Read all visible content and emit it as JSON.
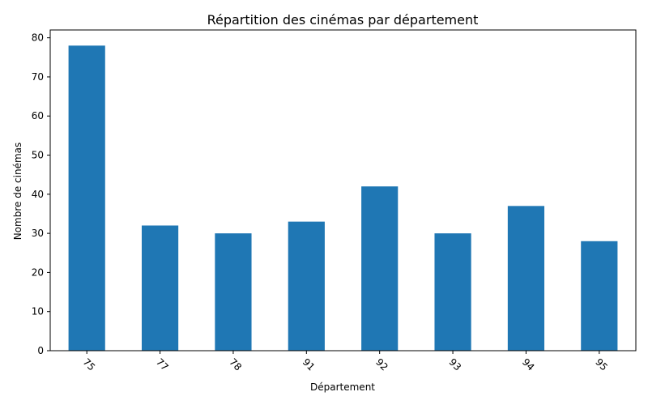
{
  "chart_data": {
    "type": "bar",
    "title": "Répartition des cinémas par département",
    "xlabel": "Département",
    "ylabel": "Nombre de cinémas",
    "categories": [
      "75",
      "77",
      "78",
      "91",
      "92",
      "93",
      "94",
      "95"
    ],
    "values": [
      78,
      32,
      30,
      33,
      42,
      30,
      37,
      28
    ],
    "ylim": [
      0,
      82
    ],
    "yticks": [
      0,
      10,
      20,
      30,
      40,
      50,
      60,
      70,
      80
    ],
    "x_tick_rotation_deg": 45,
    "grid": false,
    "legend": "none",
    "bar_color": "#1f77b4"
  }
}
